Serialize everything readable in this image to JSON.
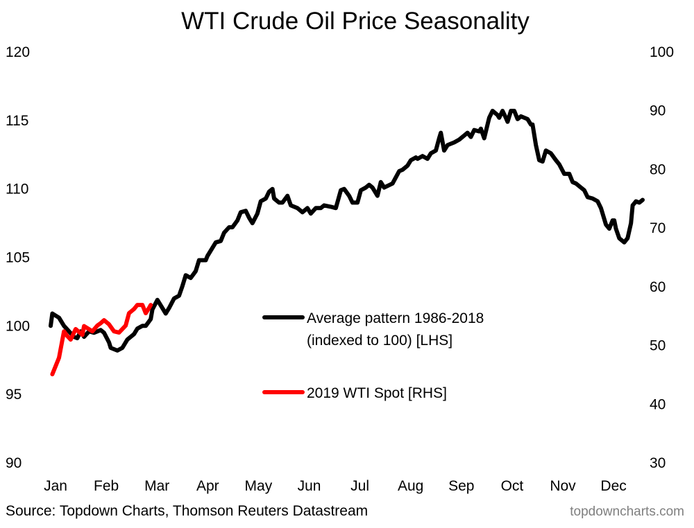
{
  "chart_data": {
    "type": "line",
    "title": "WTI Crude Oil Price Seasonality",
    "x_tick_labels": [
      "Jan",
      "Feb",
      "Mar",
      "Apr",
      "May",
      "Jun",
      "Jul",
      "Aug",
      "Sep",
      "Oct",
      "Nov",
      "Dec"
    ],
    "y_left": {
      "ylim": [
        90,
        120
      ],
      "ticks": [
        120,
        115,
        110,
        105,
        100,
        95,
        90
      ]
    },
    "y_right": {
      "ylim": [
        30,
        100
      ],
      "ticks": [
        100,
        90,
        80,
        70,
        60,
        50,
        40,
        30
      ]
    },
    "grid": false,
    "legend_placement": "center",
    "series": [
      {
        "name": "Average pattern 1986-2018\n(indexed to 100) [LHS]",
        "name_line1": "Average pattern 1986-2018",
        "name_line2": "(indexed to 100) [LHS]",
        "axis": "left",
        "color": "#000000",
        "x": [
          "Jan 1",
          "Jan 2",
          "Jan 6",
          "Jan 9",
          "Jan 12",
          "Jan 15",
          "Jan 17",
          "Jan 19",
          "Jan 21",
          "Jan 24",
          "Jan 27",
          "Jan 31",
          "Feb 2",
          "Feb 5",
          "Feb 6",
          "Feb 10",
          "Feb 13",
          "Feb 16",
          "Feb 20",
          "Feb 22",
          "Feb 25",
          "Feb 27",
          "Mar 2",
          "Mar 3",
          "Mar 6",
          "Mar 8",
          "Mar 11",
          "Mar 13",
          "Mar 16",
          "Mar 19",
          "Mar 21",
          "Mar 23",
          "Mar 26",
          "Mar 29",
          "Mar 31",
          "Apr 4",
          "Apr 5",
          "Apr 8",
          "Apr 10",
          "Apr 13",
          "Apr 15",
          "Apr 18",
          "Apr 20",
          "Apr 23",
          "Apr 25",
          "Apr 28",
          "Apr 30",
          "May 2",
          "May 5",
          "May 7",
          "May 10",
          "May 12",
          "May 14",
          "May 15",
          "May 18",
          "May 20",
          "May 23",
          "May 25",
          "May 29",
          "Jun 1",
          "Jun 4",
          "Jun 6",
          "Jun 9",
          "Jun 12",
          "Jun 14",
          "Jun 18",
          "Jun 21",
          "Jun 24",
          "Jun 26",
          "Jun 29",
          "Jul 1",
          "Jul 4",
          "Jul 6",
          "Jul 9",
          "Jul 11",
          "Jul 13",
          "Jul 16",
          "Jul 18",
          "Jul 20",
          "Jul 25",
          "Jul 29",
          "Jul 31",
          "Aug 3",
          "Aug 5",
          "Aug 8",
          "Aug 9",
          "Aug 12",
          "Aug 15",
          "Aug 17",
          "Aug 20",
          "Aug 22",
          "Aug 23",
          "Aug 25",
          "Aug 27",
          "Aug 31",
          "Sep 3",
          "Sep 6",
          "Sep 8",
          "Sep 10",
          "Sep 12",
          "Sep 15",
          "Sep 16",
          "Sep 18",
          "Sep 21",
          "Sep 23",
          "Sep 26",
          "Sep 27",
          "Sep 29",
          "Oct 1",
          "Oct 2",
          "Oct 4",
          "Oct 6",
          "Oct 8",
          "Oct 10",
          "Oct 12",
          "Oct 14",
          "Oct 16",
          "Oct 17",
          "Oct 19",
          "Oct 21",
          "Oct 23",
          "Oct 25",
          "Oct 28",
          "Oct 31",
          "Nov 2",
          "Nov 5",
          "Nov 8",
          "Nov 10",
          "Nov 12",
          "Nov 15",
          "Nov 17",
          "Nov 19",
          "Nov 22",
          "Nov 25",
          "Nov 27",
          "Nov 30",
          "Dec 2",
          "Dec 4",
          "Dec 5",
          "Dec 6",
          "Dec 8",
          "Dec 11",
          "Dec 13",
          "Dec 15",
          "Dec 16",
          "Dec 18",
          "Dec 20",
          "Dec 22"
        ],
        "y": [
          100.0,
          100.9,
          100.6,
          100.0,
          99.6,
          99.2,
          99.1,
          99.6,
          99.2,
          99.6,
          99.5,
          99.7,
          99.5,
          98.8,
          98.4,
          98.2,
          98.4,
          99.0,
          99.4,
          99.8,
          100.0,
          100.0,
          100.5,
          101.2,
          101.9,
          101.5,
          100.9,
          101.3,
          102.0,
          102.2,
          102.9,
          103.7,
          103.5,
          104.0,
          104.8,
          104.8,
          105.1,
          105.7,
          106.1,
          106.2,
          106.8,
          107.2,
          107.2,
          107.7,
          108.3,
          108.4,
          107.9,
          107.5,
          108.2,
          109.1,
          109.3,
          109.8,
          110.0,
          109.3,
          109.0,
          109.0,
          109.5,
          108.8,
          108.6,
          108.3,
          108.6,
          108.2,
          108.6,
          108.6,
          108.8,
          108.7,
          108.6,
          109.9,
          110.0,
          109.5,
          109.0,
          109.0,
          109.9,
          110.1,
          110.3,
          110.1,
          109.5,
          110.5,
          110.1,
          110.4,
          111.3,
          111.4,
          111.7,
          112.1,
          112.3,
          112.2,
          112.4,
          112.2,
          112.6,
          112.8,
          113.7,
          114.1,
          112.8,
          113.2,
          113.4,
          113.6,
          113.9,
          114.1,
          113.8,
          114.3,
          114.2,
          114.4,
          113.7,
          115.2,
          115.7,
          115.4,
          115.2,
          115.7,
          115.2,
          114.9,
          115.7,
          115.7,
          115.1,
          115.3,
          115.2,
          115.1,
          114.7,
          114.7,
          113.2,
          112.1,
          112.0,
          112.8,
          112.6,
          112.1,
          111.8,
          111.1,
          111.1,
          110.5,
          110.4,
          110.1,
          109.9,
          109.4,
          109.3,
          109.1,
          108.6,
          107.4,
          107.1,
          107.7,
          107.7,
          107.1,
          106.4,
          106.1,
          106.4,
          107.5,
          108.8,
          109.1,
          109.0,
          109.2
        ]
      },
      {
        "name": "2019 WTI Spot [RHS]",
        "axis": "right",
        "color": "#ff0000",
        "x": [
          "Jan 2",
          "Jan 4",
          "Jan 6",
          "Jan 9",
          "Jan 11",
          "Jan 13",
          "Jan 16",
          "Jan 20",
          "Jan 21",
          "Jan 26",
          "Jan 29",
          "Jan 31",
          "Feb 2",
          "Feb 5",
          "Feb 8",
          "Feb 11",
          "Feb 15",
          "Feb 17",
          "Feb 20",
          "Feb 22",
          "Feb 25",
          "Feb 27",
          "Mar 1",
          "Mar 2"
        ],
        "y": [
          45.1,
          46.5,
          47.9,
          52.4,
          51.6,
          51.0,
          52.8,
          51.8,
          53.3,
          52.4,
          53.4,
          53.8,
          54.3,
          53.6,
          52.4,
          52.2,
          53.4,
          55.5,
          56.2,
          56.9,
          56.9,
          55.5,
          56.4,
          56.9
        ]
      }
    ],
    "source": "Source: Topdown Charts, Thomson Reuters Datastream",
    "watermark": "topdowncharts.com"
  }
}
